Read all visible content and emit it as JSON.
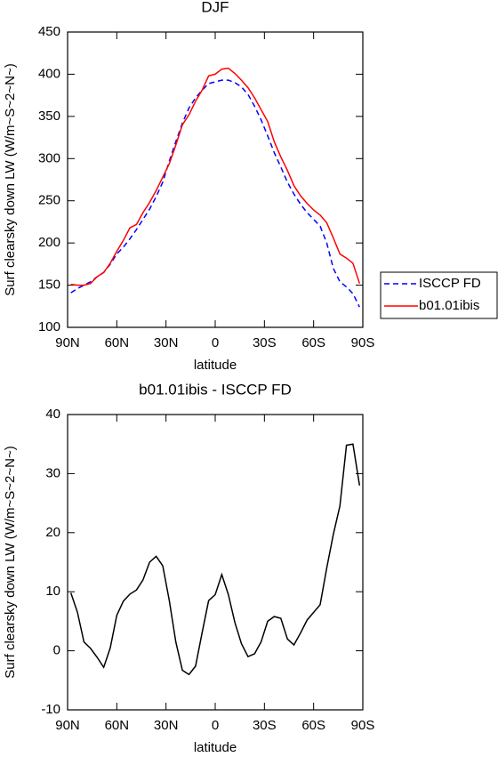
{
  "chart_data": [
    {
      "type": "line",
      "title": "DJF",
      "xlabel": "latitude",
      "ylabel": "Surf clearsky down LW (W/m~S~2~N~)",
      "x": [
        88,
        84,
        80,
        76,
        72,
        68,
        64,
        60,
        56,
        52,
        48,
        44,
        40,
        36,
        32,
        28,
        24,
        20,
        16,
        12,
        8,
        4,
        0,
        -4,
        -8,
        -12,
        -16,
        -20,
        -24,
        -28,
        -32,
        -36,
        -40,
        -44,
        -48,
        -52,
        -56,
        -60,
        -64,
        -68,
        -72,
        -76,
        -80,
        -84,
        -88
      ],
      "series": [
        {
          "name": "ISCCP FD",
          "color": "#0000ff",
          "dash": true,
          "values": [
            141,
            146,
            150,
            154,
            160,
            165,
            175,
            187,
            195,
            205,
            216,
            228,
            240,
            255,
            272,
            297,
            320,
            342,
            360,
            372,
            381,
            389,
            391,
            393,
            393,
            390,
            385,
            376,
            362,
            346,
            327,
            307,
            290,
            272,
            258,
            246,
            236,
            228,
            220,
            200,
            170,
            154,
            148,
            140,
            124
          ]
        },
        {
          "name": "b01.01ibis",
          "color": "#ff0000",
          "dash": false,
          "values": [
            151,
            150,
            150,
            152,
            160,
            165,
            176,
            190,
            203,
            218,
            222,
            236,
            248,
            262,
            278,
            294,
            316,
            340,
            352,
            368,
            381,
            398,
            400,
            406,
            407,
            401,
            393,
            384,
            372,
            358,
            344,
            320,
            302,
            286,
            268,
            256,
            247,
            239,
            233,
            224,
            206,
            187,
            182,
            176,
            152
          ]
        }
      ],
      "xlim": [
        90,
        -90
      ],
      "xticks": [
        {
          "value": 90,
          "label": "90N"
        },
        {
          "value": 60,
          "label": "60N"
        },
        {
          "value": 30,
          "label": "30N"
        },
        0,
        {
          "value": -30,
          "label": "30S"
        },
        {
          "value": -60,
          "label": "60S"
        },
        {
          "value": -90,
          "label": "90S"
        }
      ],
      "ylim": [
        100,
        450
      ],
      "yticks": [
        100,
        150,
        200,
        250,
        300,
        350,
        400,
        450
      ],
      "legend": "right"
    },
    {
      "type": "line",
      "title": "b01.01ibis - ISCCP FD",
      "xlabel": "latitude",
      "ylabel": "Surf clearsky down LW (W/m~S~2~N~)",
      "x": [
        88,
        84,
        80,
        76,
        72,
        68,
        64,
        60,
        56,
        52,
        48,
        44,
        40,
        36,
        32,
        28,
        24,
        20,
        16,
        12,
        8,
        4,
        0,
        -4,
        -8,
        -12,
        -16,
        -20,
        -24,
        -28,
        -32,
        -36,
        -40,
        -44,
        -48,
        -52,
        -56,
        -60,
        -64,
        -68,
        -72,
        -76,
        -80,
        -84,
        -88
      ],
      "series": [
        {
          "color": "#000000",
          "dash": false,
          "values": [
            9.8,
            6.5,
            1.5,
            0.4,
            -1.1,
            -2.8,
            0.5,
            6,
            8.4,
            9.6,
            10.3,
            12,
            15,
            16,
            14.4,
            8.5,
            1.5,
            -3.3,
            -4,
            -2.6,
            3,
            8.5,
            9.5,
            12.9,
            9.5,
            4.8,
            1.2,
            -1,
            -0.5,
            1.5,
            5,
            5.8,
            5.5,
            2,
            1,
            3,
            5.2,
            6.5,
            7.8,
            14,
            19.7,
            24.5,
            34.8,
            35,
            28
          ]
        }
      ],
      "xlim": [
        90,
        -90
      ],
      "xticks": [
        {
          "value": 90,
          "label": "90N"
        },
        {
          "value": 60,
          "label": "60N"
        },
        {
          "value": 30,
          "label": "30N"
        },
        0,
        {
          "value": -30,
          "label": "30S"
        },
        {
          "value": -60,
          "label": "60S"
        },
        {
          "value": -90,
          "label": "90S"
        }
      ],
      "ylim": [
        -10,
        40
      ],
      "yticks": [
        -10,
        0,
        10,
        20,
        30,
        40
      ]
    }
  ]
}
